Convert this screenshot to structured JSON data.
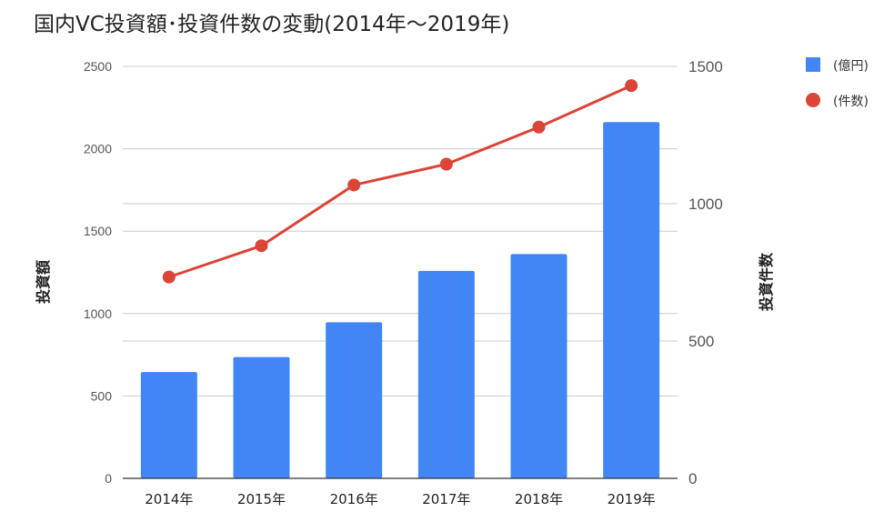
{
  "chart_data": {
    "type": "bar",
    "title": "国内VC投資額･投資件数の変動(2014年〜2019年)",
    "categories": [
      "2014年",
      "2015年",
      "2016年",
      "2017年",
      "2018年",
      "2019年"
    ],
    "series": [
      {
        "name": "(億円)",
        "type": "bar",
        "axis": "left",
        "color": "#4285f4",
        "values": [
          645,
          736,
          947,
          1259,
          1361,
          2162
        ]
      },
      {
        "name": "(件数)",
        "type": "line",
        "axis": "right",
        "color": "#db4437",
        "values": [
          733,
          847,
          1068,
          1144,
          1279,
          1430
        ]
      }
    ],
    "ylabel_left": "投資額",
    "ylabel_right": "投資件数",
    "ylim_left": [
      0,
      2500
    ],
    "yticks_left": [
      0,
      500,
      1000,
      1500,
      2000,
      2500
    ],
    "ylim_right": [
      0,
      1500
    ],
    "yticks_right": [
      0,
      500,
      1000,
      1500
    ],
    "grid": true,
    "legend_position": "top-right"
  }
}
